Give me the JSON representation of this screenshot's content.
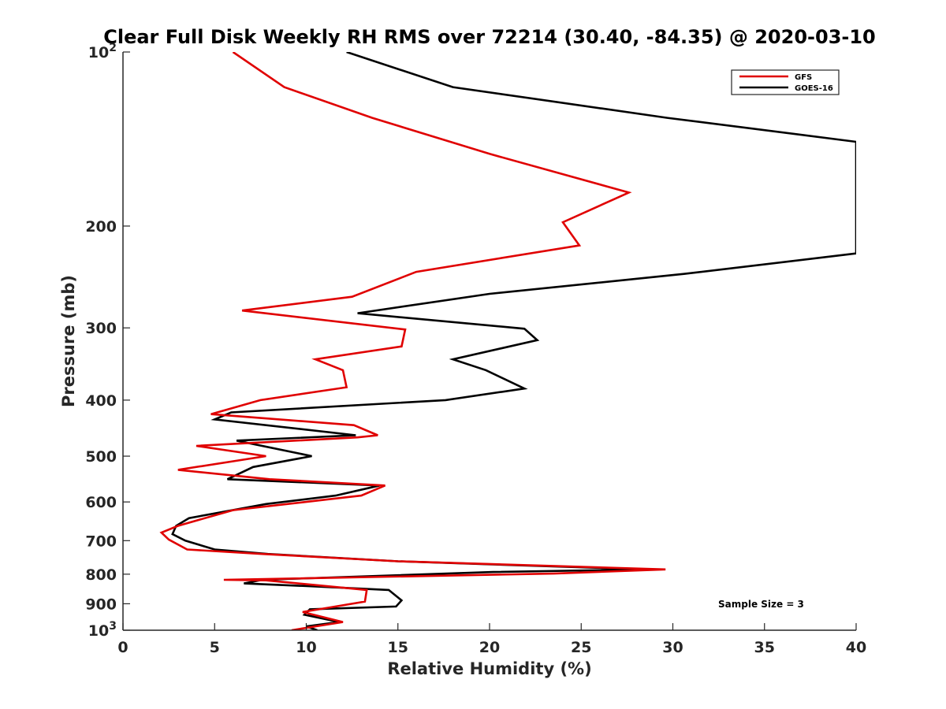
{
  "chart_data": {
    "type": "line",
    "title": "Clear Full Disk Weekly RH RMS over 72214 (30.40, -84.35) @ 2020-03-10",
    "xlabel": "Relative Humidity (%)",
    "ylabel": "Pressure (mb)",
    "xlim": [
      0,
      40
    ],
    "ylim": [
      100,
      1000
    ],
    "yscale": "log",
    "y_reversed": true,
    "grid": false,
    "legend_position": "top-right",
    "x_ticks": [
      0,
      5,
      10,
      15,
      20,
      25,
      30,
      35,
      40
    ],
    "x_tick_labels": [
      "0",
      "5",
      "10",
      "15",
      "20",
      "25",
      "30",
      "35",
      "40"
    ],
    "y_ticks": [
      100,
      200,
      300,
      400,
      500,
      600,
      700,
      800,
      900,
      1000
    ],
    "y_tick_labels": [
      {
        "base": "10",
        "exp": "2"
      },
      {
        "base": "200",
        "exp": ""
      },
      {
        "base": "300",
        "exp": ""
      },
      {
        "base": "400",
        "exp": ""
      },
      {
        "base": "500",
        "exp": ""
      },
      {
        "base": "600",
        "exp": ""
      },
      {
        "base": "700",
        "exp": ""
      },
      {
        "base": "800",
        "exp": ""
      },
      {
        "base": "900",
        "exp": ""
      },
      {
        "base": "10",
        "exp": "3"
      }
    ],
    "annotation": "Sample Size = 3",
    "series": [
      {
        "name": "GFS",
        "color": "#e00000",
        "points": [
          [
            6.0,
            100
          ],
          [
            8.8,
            115
          ],
          [
            13.6,
            130
          ],
          [
            20.0,
            150
          ],
          [
            27.6,
            175
          ],
          [
            24.0,
            197
          ],
          [
            24.9,
            216
          ],
          [
            16.0,
            240
          ],
          [
            12.5,
            265
          ],
          [
            6.5,
            280
          ],
          [
            15.4,
            302
          ],
          [
            15.2,
            323
          ],
          [
            10.5,
            340
          ],
          [
            12.0,
            355
          ],
          [
            12.2,
            380
          ],
          [
            7.5,
            400
          ],
          [
            4.8,
            423
          ],
          [
            12.6,
            442
          ],
          [
            13.9,
            460
          ],
          [
            12.8,
            464
          ],
          [
            4.0,
            480
          ],
          [
            7.8,
            500
          ],
          [
            3.0,
            528
          ],
          [
            8.0,
            548
          ],
          [
            14.3,
            562
          ],
          [
            13.0,
            585
          ],
          [
            6.0,
            620
          ],
          [
            3.0,
            660
          ],
          [
            2.1,
            678
          ],
          [
            2.5,
            697
          ],
          [
            3.5,
            725
          ],
          [
            7.6,
            738
          ],
          [
            15.0,
            760
          ],
          [
            29.6,
            785
          ],
          [
            23.5,
            798
          ],
          [
            5.5,
            818
          ],
          [
            7.8,
            820
          ],
          [
            13.3,
            852
          ],
          [
            13.2,
            892
          ],
          [
            9.8,
            930
          ],
          [
            12.0,
            968
          ],
          [
            9.2,
            1000
          ]
        ]
      },
      {
        "name": "GOES-16",
        "color": "#000000",
        "points": [
          [
            12.2,
            100
          ],
          [
            18.0,
            115
          ],
          [
            29.7,
            130
          ],
          [
            40.0,
            143
          ],
          [
            40.0,
            223
          ],
          [
            30.6,
            242
          ],
          [
            20.0,
            262
          ],
          [
            12.8,
            283
          ],
          [
            21.9,
            301
          ],
          [
            22.6,
            315
          ],
          [
            18.0,
            340
          ],
          [
            19.8,
            355
          ],
          [
            21.9,
            382
          ],
          [
            17.6,
            400
          ],
          [
            5.9,
            420
          ],
          [
            5.0,
            432
          ],
          [
            12.7,
            460
          ],
          [
            6.2,
            470
          ],
          [
            10.3,
            500
          ],
          [
            7.1,
            522
          ],
          [
            5.7,
            548
          ],
          [
            14.0,
            562
          ],
          [
            11.6,
            585
          ],
          [
            7.8,
            605
          ],
          [
            3.6,
            640
          ],
          [
            2.9,
            660
          ],
          [
            2.7,
            682
          ],
          [
            3.4,
            700
          ],
          [
            5.0,
            725
          ],
          [
            7.9,
            738
          ],
          [
            15.0,
            760
          ],
          [
            28.5,
            785
          ],
          [
            20.2,
            793
          ],
          [
            7.6,
            818
          ],
          [
            6.6,
            830
          ],
          [
            10.5,
            840
          ],
          [
            14.5,
            852
          ],
          [
            15.2,
            888
          ],
          [
            14.9,
            910
          ],
          [
            10.2,
            920
          ],
          [
            9.9,
            940
          ],
          [
            11.8,
            968
          ],
          [
            10.0,
            985
          ],
          [
            10.6,
            1000
          ]
        ]
      }
    ]
  }
}
